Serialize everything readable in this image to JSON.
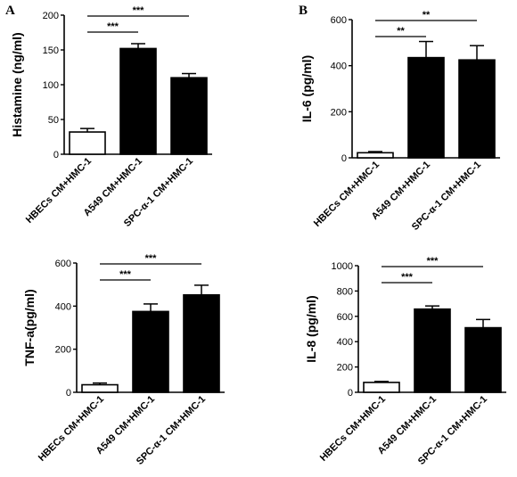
{
  "panel_labels": [
    "A",
    "B"
  ],
  "chart_data": [
    {
      "type": "bar",
      "ylabel": "Histamine (ng/ml)",
      "categories": [
        "HBECs CM+HMC-1",
        "A549 CM+HMC-1",
        "SPC-α-1 CM+HMC-1"
      ],
      "values": [
        32,
        152,
        110
      ],
      "errors": [
        5,
        7,
        6
      ],
      "ylim": [
        0,
        200
      ],
      "yticks": [
        0,
        50,
        100,
        150,
        200
      ],
      "bar_fills": [
        "#ffffff",
        "#000000",
        "#000000"
      ],
      "significance": [
        {
          "from": 0,
          "to": 1,
          "label": "***"
        },
        {
          "from": 0,
          "to": 2,
          "label": "***"
        }
      ]
    },
    {
      "type": "bar",
      "ylabel": "IL-6 (pg/ml)",
      "categories": [
        "HBECs CM+HMC-1",
        "A549 CM+HMC-1",
        "SPC-α-1 CM+HMC-1"
      ],
      "values": [
        22,
        435,
        425
      ],
      "errors": [
        5,
        70,
        62
      ],
      "ylim": [
        0,
        600
      ],
      "yticks": [
        0,
        200,
        400,
        600
      ],
      "bar_fills": [
        "#ffffff",
        "#000000",
        "#000000"
      ],
      "significance": [
        {
          "from": 0,
          "to": 1,
          "label": "**"
        },
        {
          "from": 0,
          "to": 2,
          "label": "**"
        }
      ]
    },
    {
      "type": "bar",
      "ylabel": "TNF-a(pg/ml)",
      "categories": [
        "HBECs CM+HMC-1",
        "A549 CM+HMC-1",
        "SPC-α-1 CM+HMC-1"
      ],
      "values": [
        35,
        375,
        452
      ],
      "errors": [
        8,
        35,
        45
      ],
      "ylim": [
        0,
        600
      ],
      "yticks": [
        0,
        200,
        400,
        600
      ],
      "bar_fills": [
        "#ffffff",
        "#000000",
        "#000000"
      ],
      "significance": [
        {
          "from": 0,
          "to": 1,
          "label": "***"
        },
        {
          "from": 0,
          "to": 2,
          "label": "***"
        }
      ]
    },
    {
      "type": "bar",
      "ylabel": "IL-8 (pg/ml)",
      "categories": [
        "HBECs CM+HMC-1",
        "A549 CM+HMC-1",
        "SPC-α-1 CM+HMC-1"
      ],
      "values": [
        78,
        657,
        510
      ],
      "errors": [
        8,
        25,
        65
      ],
      "ylim": [
        0,
        1000
      ],
      "yticks": [
        0,
        200,
        400,
        600,
        800,
        1000
      ],
      "bar_fills": [
        "#ffffff",
        "#000000",
        "#000000"
      ],
      "significance": [
        {
          "from": 0,
          "to": 1,
          "label": "***"
        },
        {
          "from": 0,
          "to": 2,
          "label": "***"
        }
      ]
    }
  ]
}
